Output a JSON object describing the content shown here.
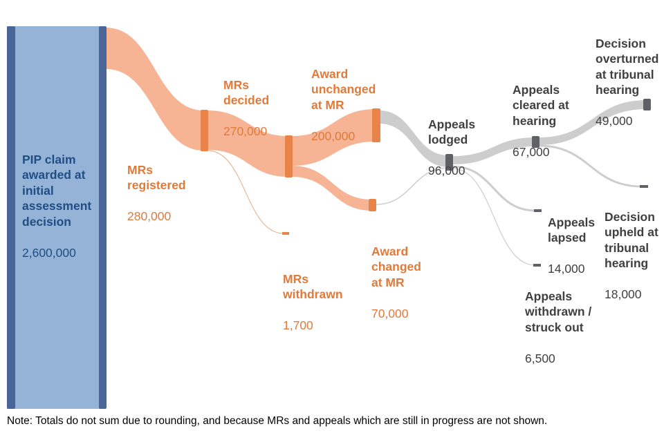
{
  "colors": {
    "source_fill": "#95b3d7",
    "source_bar": "#4a6699",
    "mr_flow": "#f6b494",
    "mr_node": "#e8834a",
    "appeal_flow": "#cdcdcd",
    "appeal_node": "#5f6165",
    "withdrawn_flow": "#e8b896"
  },
  "nodes": {
    "pip": {
      "name": "PIP claim\nawarded at\ninitial\nassessment\ndecision",
      "value": "2,600,000"
    },
    "mrs_registered": {
      "name": "MRs\nregistered",
      "value": "280,000"
    },
    "mrs_decided": {
      "name": "MRs\ndecided",
      "value": "270,000"
    },
    "mrs_withdrawn": {
      "name": "MRs\nwithdrawn",
      "value": "1,700"
    },
    "award_unchanged": {
      "name": "Award\nunchanged\nat MR",
      "value": "200,000"
    },
    "award_changed": {
      "name": "Award\nchanged\nat MR",
      "value": "70,000"
    },
    "appeals_lodged": {
      "name": "Appeals\nlodged",
      "value": "96,000"
    },
    "appeals_cleared": {
      "name": "Appeals\ncleared at\nhearing",
      "value": "67,000"
    },
    "appeals_lapsed": {
      "name": "Appeals\nlapsed",
      "value": "14,000"
    },
    "appeals_withdrawn": {
      "name": "Appeals\nwithdrawn /\nstruck out",
      "value": "6,500"
    },
    "decision_overturned": {
      "name": "Decision\noverturned\nat tribunal\nhearing",
      "value": "49,000"
    },
    "decision_upheld": {
      "name": "Decision\nupheld at\ntribunal\nhearing",
      "value": "18,000"
    }
  },
  "flows": [
    {
      "from": "pip",
      "to": "mrs_registered",
      "value": 280000
    },
    {
      "from": "mrs_registered",
      "to": "mrs_decided",
      "value": 270000
    },
    {
      "from": "mrs_registered",
      "to": "mrs_withdrawn",
      "value": 1700
    },
    {
      "from": "mrs_decided",
      "to": "award_unchanged",
      "value": 200000
    },
    {
      "from": "mrs_decided",
      "to": "award_changed",
      "value": 70000
    },
    {
      "from": "award_unchanged",
      "to": "appeals_lodged",
      "value": 96000
    },
    {
      "from": "award_changed",
      "to": "appeals_lodged",
      "value": 1000
    },
    {
      "from": "appeals_lodged",
      "to": "appeals_cleared",
      "value": 67000
    },
    {
      "from": "appeals_lodged",
      "to": "appeals_lapsed",
      "value": 14000
    },
    {
      "from": "appeals_lodged",
      "to": "appeals_withdrawn",
      "value": 6500
    },
    {
      "from": "appeals_cleared",
      "to": "decision_overturned",
      "value": 49000
    },
    {
      "from": "appeals_cleared",
      "to": "decision_upheld",
      "value": 18000
    }
  ],
  "note": "Note: Totals do not sum due to rounding, and because MRs and appeals which are still in progress are not shown."
}
